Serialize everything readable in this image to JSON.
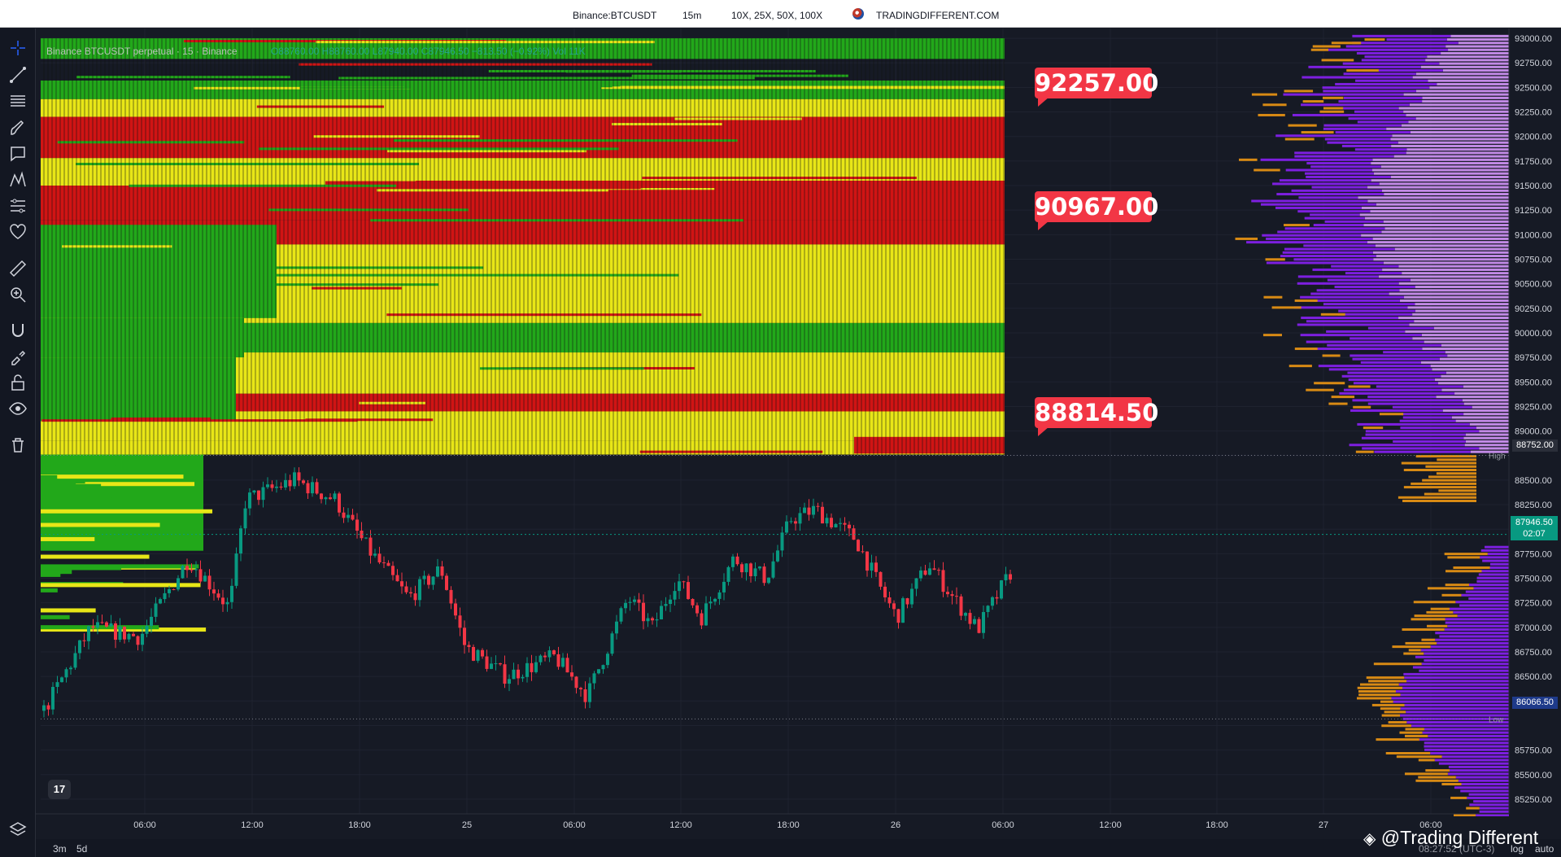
{
  "header": {
    "symbol": "Binance:BTCUSDT",
    "interval": "15m",
    "leverage": "10X, 25X, 50X, 100X",
    "brand_icon": "globe-flag-icon",
    "brand": "TRADINGDIFFERENT.COM"
  },
  "legend": {
    "title": "Binance BTCUSDT perpetual · 15 · Binance",
    "ohlc": "O88760.00 H88760.00 L87940.00 C87946.50 −813.50 (−0.92%) Vol 11K"
  },
  "callouts": [
    "92257.00",
    "90967.00",
    "88814.50"
  ],
  "price_axis": {
    "ticks": [
      "93000.00",
      "92750.00",
      "92500.00",
      "92250.00",
      "92000.00",
      "91750.00",
      "91500.00",
      "91250.00",
      "91000.00",
      "90750.00",
      "90500.00",
      "90250.00",
      "90000.00",
      "89750.00",
      "89500.00",
      "89250.00",
      "89000.00",
      "88500.00",
      "88250.00",
      "87750.00",
      "87500.00",
      "87250.00",
      "87000.00",
      "86750.00",
      "86500.00",
      "86250.00",
      "85750.00",
      "85500.00",
      "85250.00"
    ],
    "high_label": "High",
    "high_value": "88752.00",
    "low_label": "Low",
    "low_value": "86066.50",
    "last_price": "87946.50",
    "countdown": "02:07"
  },
  "time_axis": {
    "ticks": [
      "06:00",
      "12:00",
      "18:00",
      "25",
      "06:00",
      "12:00",
      "18:00",
      "26",
      "06:00",
      "12:00",
      "18:00",
      "27",
      "06:00"
    ]
  },
  "bottom_bar": {
    "range_3m": "3m",
    "range_5d": "5d",
    "clock": "08:27:52 (UTC-3)",
    "log": "log",
    "auto": "auto"
  },
  "watermark": "@Trading Different",
  "sidebar_tools": [
    "crosshair-icon",
    "trendline-icon",
    "fib-retracement-icon",
    "brush-icon",
    "text-note-icon",
    "pattern-icon",
    "projection-icon",
    "favorite-heart-icon",
    "ruler-icon",
    "zoom-in-icon",
    "magnet-icon",
    "lock-drawing-icon",
    "unlock-icon",
    "eye-icon",
    "trash-icon",
    "layers-icon"
  ],
  "colors": {
    "background": "#161a25",
    "heatmap_green": "#22a81a",
    "heatmap_yellow": "#e8e617",
    "heatmap_red": "#d01414",
    "candle_up": "#089981",
    "candle_down": "#f23645",
    "profile_light": "#c28ae6",
    "profile_purple": "#7d1fe0",
    "profile_orange": "#d88a14",
    "callout": "#f23645"
  },
  "chart_data": {
    "type": "candlestick",
    "title": "Binance:BTCUSDT 15m",
    "y_range": [
      85100,
      93100
    ],
    "high": 88752.0,
    "low": 86066.5,
    "last": 87946.5,
    "liquidation_levels": [
      92257.0,
      90967.0,
      88814.5
    ]
  }
}
